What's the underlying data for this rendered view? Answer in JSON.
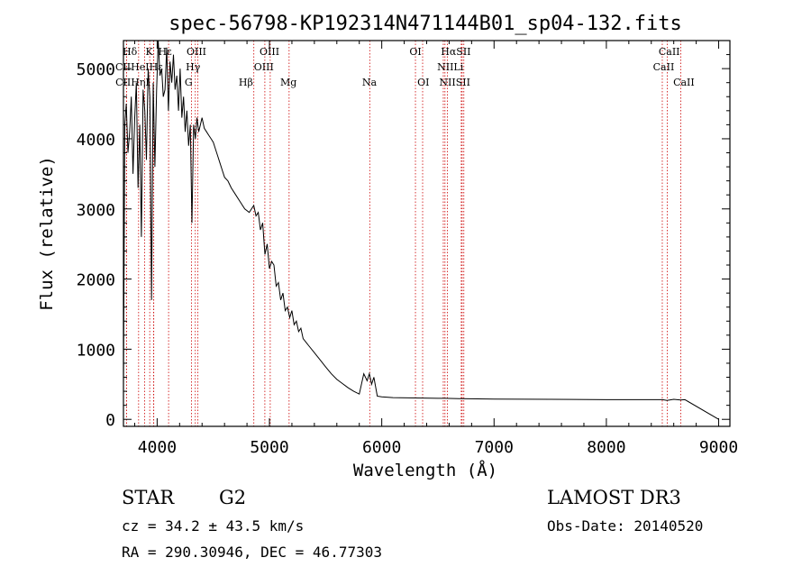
{
  "chart_data": {
    "type": "line",
    "title": "spec-56798-KP192314N471144B01_sp04-132.fits",
    "xlabel": "Wavelength (Å)",
    "ylabel": "Flux (relative)",
    "xlim": [
      3700,
      9100
    ],
    "ylim": [
      -100,
      5400
    ],
    "x_ticks": [
      4000,
      5000,
      6000,
      7000,
      8000,
      9000
    ],
    "y_ticks": [
      0,
      1000,
      2000,
      3000,
      4000,
      5000
    ],
    "x_tick_labels": [
      "4000",
      "5000",
      "6000",
      "7000",
      "8000",
      "9000"
    ],
    "y_tick_labels": [
      "0",
      "1000",
      "2000",
      "3000",
      "4000",
      "5000"
    ],
    "series": [
      {
        "name": "spectrum",
        "x": [
          3700,
          3712,
          3725,
          3740,
          3755,
          3770,
          3785,
          3800,
          3815,
          3830,
          3845,
          3860,
          3875,
          3890,
          3905,
          3920,
          3935,
          3950,
          3965,
          3980,
          3995,
          4010,
          4025,
          4040,
          4055,
          4070,
          4085,
          4100,
          4115,
          4130,
          4145,
          4160,
          4175,
          4190,
          4205,
          4220,
          4235,
          4250,
          4265,
          4280,
          4295,
          4310,
          4325,
          4340,
          4355,
          4370,
          4385,
          4400,
          4420,
          4440,
          4460,
          4480,
          4500,
          4520,
          4540,
          4560,
          4580,
          4600,
          4630,
          4660,
          4700,
          4740,
          4780,
          4820,
          4860,
          4880,
          4900,
          4920,
          4940,
          4960,
          4980,
          5000,
          5020,
          5040,
          5060,
          5080,
          5100,
          5120,
          5140,
          5160,
          5180,
          5200,
          5220,
          5240,
          5260,
          5280,
          5300,
          5350,
          5400,
          5450,
          5500,
          5550,
          5600,
          5650,
          5700,
          5750,
          5800,
          5840,
          5870,
          5890,
          5910,
          5930,
          5960,
          6000,
          6100,
          6300,
          6500,
          6563,
          6700,
          7000,
          7500,
          8000,
          8500,
          8540,
          8600,
          8660,
          8700,
          9000
        ],
        "values": [
          500,
          4200,
          4500,
          3800,
          4100,
          4600,
          3500,
          4300,
          4800,
          3300,
          4200,
          2600,
          4700,
          4400,
          3700,
          5000,
          4600,
          1700,
          4800,
          3600,
          4700,
          5400,
          4900,
          5000,
          4600,
          4700,
          5300,
          4400,
          5100,
          4800,
          5200,
          4700,
          4900,
          4400,
          5000,
          4300,
          4600,
          4100,
          4400,
          3900,
          4200,
          2800,
          4200,
          4000,
          4300,
          4100,
          4200,
          4300,
          4150,
          4100,
          4050,
          4000,
          3950,
          3850,
          3750,
          3650,
          3550,
          3450,
          3400,
          3300,
          3200,
          3100,
          3000,
          2950,
          3050,
          2900,
          2950,
          2700,
          2800,
          2350,
          2500,
          2150,
          2250,
          2200,
          1900,
          1950,
          1700,
          1800,
          1550,
          1600,
          1450,
          1550,
          1350,
          1400,
          1250,
          1300,
          1150,
          1050,
          950,
          850,
          750,
          650,
          570,
          510,
          450,
          400,
          360,
          650,
          550,
          650,
          500,
          600,
          330,
          320,
          310,
          305,
          300,
          300,
          295,
          290,
          285,
          280,
          280,
          270,
          285,
          275,
          280,
          0
        ]
      }
    ],
    "line_color": "#000000",
    "marker_color": "#cc0000",
    "line_markers": [
      {
        "label": "Hδ",
        "wavelength": 4102
      },
      {
        "label": "K",
        "wavelength": 3934
      },
      {
        "label": "H",
        "wavelength": 3969
      },
      {
        "label": "Hε",
        "wavelength": 3970
      },
      {
        "label": "CaII",
        "wavelength": 3727
      },
      {
        "label": "HeI",
        "wavelength": 3889
      },
      {
        "label": "Hη",
        "wavelength": 3835
      },
      {
        "label": "CII",
        "wavelength": 3727
      },
      {
        "label": "OIII",
        "wavelength": 4363
      },
      {
        "label": "Hγ",
        "wavelength": 4340
      },
      {
        "label": "G",
        "wavelength": 4305
      },
      {
        "label": "OIII",
        "wavelength": 4959
      },
      {
        "label": "OIII",
        "wavelength": 5007
      },
      {
        "label": "Hβ",
        "wavelength": 4861
      },
      {
        "label": "Mg",
        "wavelength": 5175
      },
      {
        "label": "Na",
        "wavelength": 5893
      },
      {
        "label": "OI",
        "wavelength": 6300
      },
      {
        "label": "OI",
        "wavelength": 6364
      },
      {
        "label": "Hα",
        "wavelength": 6563
      },
      {
        "label": "NII",
        "wavelength": 6584
      },
      {
        "label": "NII",
        "wavelength": 6548
      },
      {
        "label": "SII",
        "wavelength": 6716
      },
      {
        "label": "Li",
        "wavelength": 6708
      },
      {
        "label": "SII",
        "wavelength": 6731
      },
      {
        "label": "CaII",
        "wavelength": 8542
      },
      {
        "label": "CaII",
        "wavelength": 8498
      },
      {
        "label": "CaII",
        "wavelength": 8662
      }
    ],
    "marker_label_rows": [
      [
        {
          "text": "Hδ",
          "x": 3757
        },
        {
          "text": "K",
          "x": 3930
        },
        {
          "text": "Hε",
          "x": 4070
        },
        {
          "text": "OIII",
          "x": 4350
        },
        {
          "text": "OIII",
          "x": 5000
        },
        {
          "text": "OI",
          "x": 6300
        },
        {
          "text": "HαSII",
          "x": 6660
        },
        {
          "text": "CaII",
          "x": 8560
        }
      ],
      [
        {
          "text": "CIIHeIHε",
          "x": 3840
        },
        {
          "text": "Hγ",
          "x": 4320
        },
        {
          "text": "OIII",
          "x": 4950
        },
        {
          "text": "NIILi",
          "x": 6610
        },
        {
          "text": "CaII",
          "x": 8510
        }
      ],
      [
        {
          "text": "CIIHηI",
          "x": 3780
        },
        {
          "text": "G",
          "x": 4280
        },
        {
          "text": "Hβ",
          "x": 4790
        },
        {
          "text": "Mg",
          "x": 5170
        },
        {
          "text": "Na",
          "x": 5890
        },
        {
          "text": "OI",
          "x": 6370
        },
        {
          "text": "NIISII",
          "x": 6650
        },
        {
          "text": "CaII",
          "x": 8690
        }
      ]
    ]
  },
  "info": {
    "object_class": "STAR",
    "subclass": "G2",
    "survey": "LAMOST DR3",
    "redshift": "cz = 34.2 ± 43.5 km/s",
    "obs_date": "Obs-Date: 20140520",
    "coords": "RA = 290.30946, DEC =  46.77303"
  }
}
